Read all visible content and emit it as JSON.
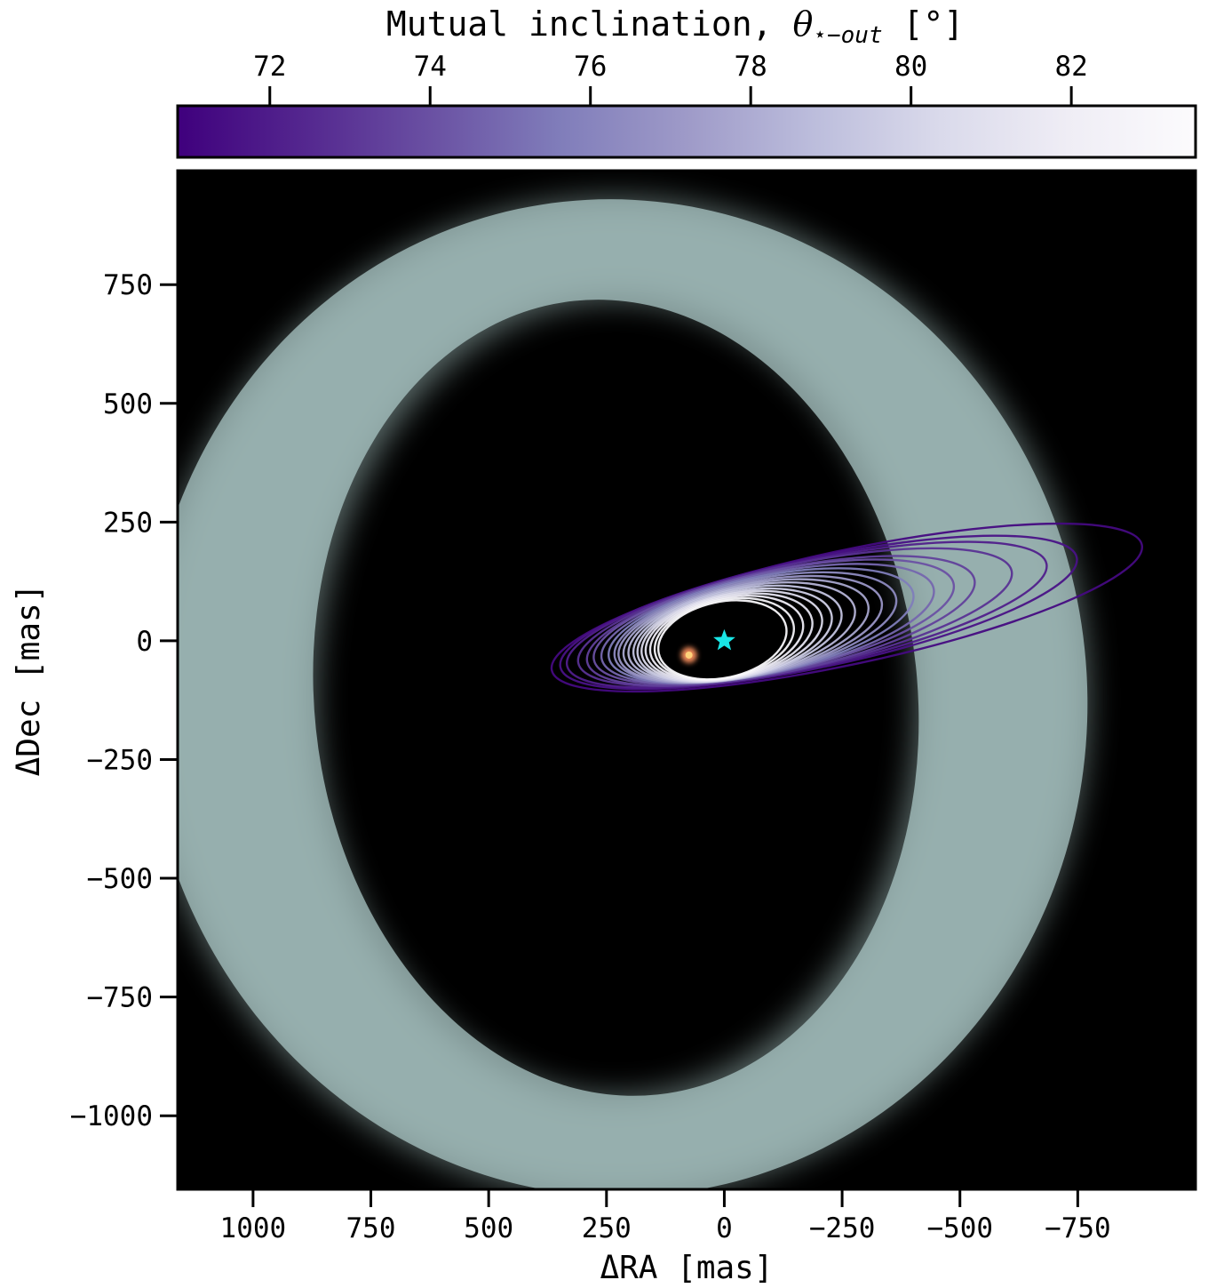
{
  "chart_data": {
    "type": "scatter",
    "description_free": true,
    "xlabel": "ΔRA [mas]",
    "ylabel": "ΔDec [mas]",
    "x_reversed": true,
    "xlim": [
      1160,
      -1000
    ],
    "ylim": [
      -1155,
      990
    ],
    "x_ticks": [
      {
        "value": 1000,
        "label": "1000"
      },
      {
        "value": 750,
        "label": "750"
      },
      {
        "value": 500,
        "label": "500"
      },
      {
        "value": 250,
        "label": "250"
      },
      {
        "value": 0,
        "label": "0"
      },
      {
        "value": -250,
        "label": "−250"
      },
      {
        "value": -500,
        "label": "−500"
      },
      {
        "value": -750,
        "label": "−750"
      }
    ],
    "y_ticks": [
      {
        "value": 750,
        "label": "750"
      },
      {
        "value": 500,
        "label": "500"
      },
      {
        "value": 250,
        "label": "250"
      },
      {
        "value": 0,
        "label": "0"
      },
      {
        "value": -250,
        "label": "−250"
      },
      {
        "value": -500,
        "label": "−500"
      },
      {
        "value": -750,
        "label": "−750"
      },
      {
        "value": -1000,
        "label": "−1000"
      }
    ],
    "colorbar": {
      "title": "Mutual inclination, ",
      "title_symbol": "θ",
      "title_subscript": "⋆−out",
      "title_unit": " [°]",
      "range": [
        70.85,
        83.55
      ],
      "ticks": [
        {
          "value": 72,
          "label": "72"
        },
        {
          "value": 74,
          "label": "74"
        },
        {
          "value": 76,
          "label": "76"
        },
        {
          "value": 78,
          "label": "78"
        },
        {
          "value": 80,
          "label": "80"
        },
        {
          "value": 82,
          "label": "82"
        }
      ],
      "colormap": [
        "#3f007d",
        "#54278f",
        "#6a51a3",
        "#807dba",
        "#9e9ac8",
        "#bcbddc",
        "#dadaeb",
        "#efedf5",
        "#fcfbfd"
      ]
    },
    "colors": {
      "background": "#000000",
      "disk": "#a9c6c4",
      "star_marker": "#19e6e6",
      "companion": "#f08a5a"
    },
    "star": {
      "x": 0,
      "y": 0
    },
    "companion": {
      "x": 75,
      "y": -30
    },
    "disk_ring": {
      "center_x": 230,
      "center_y": -120,
      "inner_rx": 640,
      "inner_ry": 840,
      "outer_rx": 1000,
      "outer_ry": 1050
    },
    "orbits": [
      {
        "rx": 640,
        "ry": 120,
        "cx": -260,
        "cy": 70,
        "theta": 71.2
      },
      {
        "rx": 560,
        "ry": 115,
        "cx": -200,
        "cy": 60,
        "theta": 71.6
      },
      {
        "rx": 520,
        "ry": 112,
        "cx": -175,
        "cy": 55,
        "theta": 72.1
      },
      {
        "rx": 470,
        "ry": 110,
        "cx": -150,
        "cy": 50,
        "theta": 72.8
      },
      {
        "rx": 420,
        "ry": 108,
        "cx": -120,
        "cy": 42,
        "theta": 73.4
      },
      {
        "rx": 390,
        "ry": 106,
        "cx": -105,
        "cy": 40,
        "theta": 74.0
      },
      {
        "rx": 360,
        "ry": 104,
        "cx": -92,
        "cy": 36,
        "theta": 74.8
      },
      {
        "rx": 330,
        "ry": 102,
        "cx": -78,
        "cy": 32,
        "theta": 75.6
      },
      {
        "rx": 305,
        "ry": 100,
        "cx": -66,
        "cy": 28,
        "theta": 76.3
      },
      {
        "rx": 285,
        "ry": 98,
        "cx": -55,
        "cy": 24,
        "theta": 77.0
      },
      {
        "rx": 265,
        "ry": 96,
        "cx": -46,
        "cy": 21,
        "theta": 77.7
      },
      {
        "rx": 245,
        "ry": 94,
        "cx": -37,
        "cy": 18,
        "theta": 78.4
      },
      {
        "rx": 225,
        "ry": 92,
        "cx": -28,
        "cy": 15,
        "theta": 79.1
      },
      {
        "rx": 210,
        "ry": 90,
        "cx": -22,
        "cy": 12,
        "theta": 79.8
      },
      {
        "rx": 195,
        "ry": 88,
        "cx": -16,
        "cy": 10,
        "theta": 80.5
      },
      {
        "rx": 180,
        "ry": 86,
        "cx": -10,
        "cy": 8,
        "theta": 81.2
      },
      {
        "rx": 165,
        "ry": 84,
        "cx": -5,
        "cy": 6,
        "theta": 81.9
      },
      {
        "rx": 150,
        "ry": 82,
        "cx": 0,
        "cy": 4,
        "theta": 82.6
      },
      {
        "rx": 138,
        "ry": 80,
        "cx": 4,
        "cy": 2,
        "theta": 83.2
      }
    ]
  }
}
